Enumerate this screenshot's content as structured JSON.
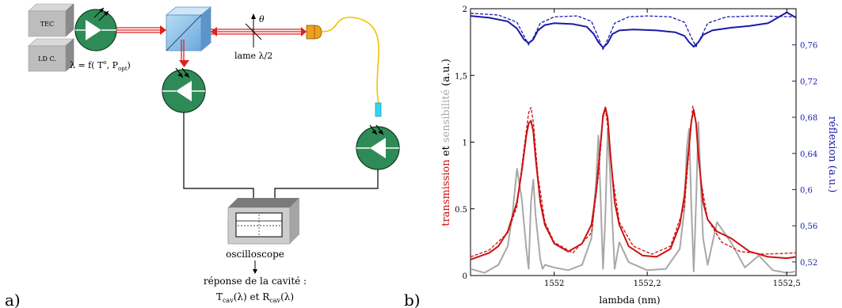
{
  "panel_a": {
    "label": "a)",
    "box_tec": "TEC",
    "box_ldc": "LD C.",
    "lambda_eq_prefix": "λ = f( T",
    "lambda_eq_sup": "o",
    "lambda_eq_mid": ", P",
    "lambda_eq_sub": "opt",
    "lambda_eq_suffix": ")",
    "theta": "θ",
    "lame": "lame λ/2",
    "oscilloscope": "oscilloscope",
    "response": "réponse de la cavité :",
    "t_cav": "T",
    "t_cav_sub": "cav",
    "t_cav_arg": "(λ) et R",
    "r_cav_sub": "cav",
    "r_cav_arg": "(λ)"
  },
  "panel_b": {
    "label": "b)"
  },
  "colors": {
    "laser_red": "#e02020",
    "detector_green": "#2e8b57",
    "cube_blue": "#8fc1ea",
    "fiber_yellow": "#f2c200",
    "connector_orange": "#f0a020",
    "transmission_red": "#cc1111",
    "sensitivity_gray": "#a8a8a8",
    "reflection_blue": "#1a1aaa"
  },
  "chart_data": {
    "type": "line",
    "xlabel": "lambda (nm)",
    "ylabel_left_parts": [
      "transmission",
      " et ",
      "sensibilité",
      " (a.u.)"
    ],
    "ylabel_right": "réflexion (a.u.)",
    "xlim": [
      1551.82,
      1552.52
    ],
    "ylim_left": [
      0,
      2
    ],
    "ylim_right": [
      0.505,
      0.8
    ],
    "x_ticks": [
      1552,
      1552.2,
      1552.5
    ],
    "x_tick_labels": [
      "1552",
      "1552,2",
      "1552,5"
    ],
    "y_left_ticks": [
      0,
      0.5,
      1,
      1.5,
      2
    ],
    "y_left_tick_labels": [
      "0",
      "0.5",
      "1",
      "1,5",
      "2"
    ],
    "y_right_ticks": [
      0.52,
      0.56,
      0.6,
      0.64,
      0.68,
      0.72,
      0.76
    ],
    "y_right_tick_labels": [
      "0,52",
      "0,56",
      "0,6",
      "0,64",
      "0,68",
      "0,72",
      "0,76"
    ],
    "series": [
      {
        "name": "transmission (measured)",
        "axis": "left",
        "style": "solid",
        "color": "#cc1111",
        "x": [
          1551.82,
          1551.86,
          1551.88,
          1551.9,
          1551.92,
          1551.93,
          1551.94,
          1551.945,
          1551.95,
          1551.955,
          1551.96,
          1551.97,
          1551.98,
          1552.0,
          1552.03,
          1552.06,
          1552.08,
          1552.09,
          1552.1,
          1552.105,
          1552.11,
          1552.115,
          1552.12,
          1552.13,
          1552.14,
          1552.16,
          1552.19,
          1552.22,
          1552.25,
          1552.27,
          1552.28,
          1552.29,
          1552.295,
          1552.3,
          1552.305,
          1552.31,
          1552.32,
          1552.33,
          1552.35,
          1552.38,
          1552.42,
          1552.46,
          1552.5,
          1552.52
        ],
        "y": [
          0.12,
          0.17,
          0.22,
          0.33,
          0.55,
          0.78,
          1.05,
          1.14,
          1.16,
          1.08,
          0.88,
          0.55,
          0.38,
          0.24,
          0.18,
          0.24,
          0.38,
          0.62,
          1.0,
          1.2,
          1.26,
          1.18,
          0.95,
          0.55,
          0.38,
          0.22,
          0.15,
          0.14,
          0.2,
          0.38,
          0.6,
          0.98,
          1.16,
          1.24,
          1.14,
          0.9,
          0.55,
          0.42,
          0.33,
          0.28,
          0.18,
          0.14,
          0.13,
          0.14
        ]
      },
      {
        "name": "transmission (fit)",
        "axis": "left",
        "style": "dashed",
        "color": "#cc1111",
        "x": [
          1551.82,
          1551.86,
          1551.9,
          1551.92,
          1551.935,
          1551.945,
          1551.95,
          1551.955,
          1551.965,
          1551.98,
          1552.0,
          1552.04,
          1552.08,
          1552.095,
          1552.105,
          1552.11,
          1552.115,
          1552.125,
          1552.14,
          1552.17,
          1552.21,
          1552.25,
          1552.28,
          1552.29,
          1552.298,
          1552.305,
          1552.315,
          1552.33,
          1552.36,
          1552.4,
          1552.45,
          1552.52
        ],
        "y": [
          0.14,
          0.19,
          0.32,
          0.52,
          0.95,
          1.22,
          1.26,
          1.15,
          0.75,
          0.4,
          0.25,
          0.17,
          0.32,
          0.75,
          1.18,
          1.25,
          1.12,
          0.75,
          0.4,
          0.22,
          0.16,
          0.22,
          0.52,
          0.95,
          1.27,
          1.15,
          0.72,
          0.42,
          0.25,
          0.18,
          0.16,
          0.17
        ]
      },
      {
        "name": "sensibilité",
        "axis": "left",
        "style": "solid",
        "color": "#a8a8a8",
        "x": [
          1551.82,
          1551.85,
          1551.88,
          1551.9,
          1551.91,
          1551.92,
          1551.93,
          1551.94,
          1551.945,
          1551.95,
          1551.955,
          1551.96,
          1551.97,
          1551.975,
          1551.98,
          1552.0,
          1552.03,
          1552.06,
          1552.08,
          1552.09,
          1552.095,
          1552.1,
          1552.105,
          1552.11,
          1552.115,
          1552.12,
          1552.125,
          1552.13,
          1552.14,
          1552.16,
          1552.2,
          1552.24,
          1552.27,
          1552.28,
          1552.285,
          1552.29,
          1552.295,
          1552.3,
          1552.305,
          1552.31,
          1552.315,
          1552.32,
          1552.33,
          1552.35,
          1552.38,
          1552.41,
          1552.44,
          1552.47,
          1552.5,
          1552.52
        ],
        "y": [
          0.05,
          0.02,
          0.08,
          0.22,
          0.45,
          0.8,
          0.58,
          0.2,
          0.05,
          0.55,
          0.72,
          0.45,
          0.12,
          0.05,
          0.08,
          0.06,
          0.04,
          0.08,
          0.28,
          0.7,
          1.05,
          0.55,
          0.05,
          0.45,
          1.1,
          0.78,
          0.4,
          0.05,
          0.25,
          0.1,
          0.04,
          0.05,
          0.2,
          0.5,
          0.95,
          1.1,
          0.5,
          0.03,
          0.55,
          1.15,
          0.7,
          0.28,
          0.08,
          0.4,
          0.25,
          0.06,
          0.15,
          0.04,
          0.02,
          0.03
        ]
      },
      {
        "name": "réflexion (measured)",
        "axis": "right",
        "style": "solid",
        "color": "#1a1aaa",
        "x": [
          1551.82,
          1551.86,
          1551.9,
          1551.92,
          1551.935,
          1551.945,
          1551.955,
          1551.965,
          1551.98,
          1552.0,
          1552.04,
          1552.07,
          1552.085,
          1552.095,
          1552.105,
          1552.115,
          1552.125,
          1552.14,
          1552.17,
          1552.22,
          1552.26,
          1552.28,
          1552.29,
          1552.3,
          1552.31,
          1552.32,
          1552.34,
          1552.38,
          1552.42,
          1552.46,
          1552.5,
          1552.52
        ],
        "y": [
          0.792,
          0.79,
          0.786,
          0.778,
          0.766,
          0.762,
          0.766,
          0.776,
          0.782,
          0.784,
          0.783,
          0.78,
          0.772,
          0.763,
          0.757,
          0.762,
          0.772,
          0.776,
          0.777,
          0.776,
          0.774,
          0.77,
          0.763,
          0.758,
          0.763,
          0.771,
          0.776,
          0.779,
          0.781,
          0.784,
          0.796,
          0.79
        ]
      },
      {
        "name": "réflexion (fit)",
        "axis": "right",
        "style": "dashed",
        "color": "#1a1aaa",
        "x": [
          1551.82,
          1551.88,
          1551.92,
          1551.935,
          1551.945,
          1551.955,
          1551.97,
          1552.0,
          1552.05,
          1552.08,
          1552.095,
          1552.105,
          1552.115,
          1552.13,
          1552.16,
          1552.2,
          1552.25,
          1552.28,
          1552.295,
          1552.305,
          1552.315,
          1552.33,
          1552.37,
          1552.44,
          1552.52
        ],
        "y": [
          0.795,
          0.793,
          0.785,
          0.77,
          0.76,
          0.768,
          0.784,
          0.791,
          0.792,
          0.786,
          0.768,
          0.755,
          0.766,
          0.784,
          0.791,
          0.792,
          0.791,
          0.785,
          0.768,
          0.758,
          0.768,
          0.784,
          0.791,
          0.792,
          0.791
        ]
      }
    ]
  }
}
